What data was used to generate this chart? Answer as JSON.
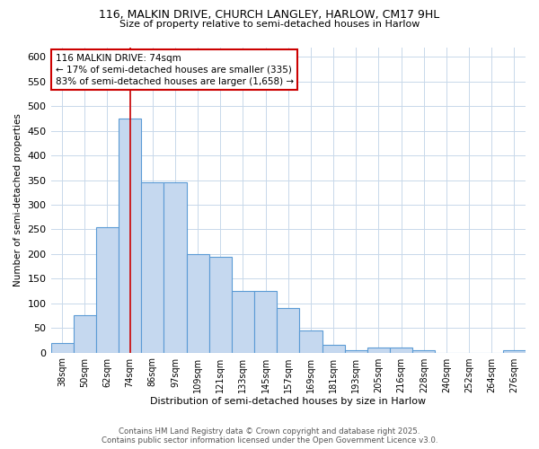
{
  "title_line1": "116, MALKIN DRIVE, CHURCH LANGLEY, HARLOW, CM17 9HL",
  "title_line2": "Size of property relative to semi-detached houses in Harlow",
  "xlabel": "Distribution of semi-detached houses by size in Harlow",
  "ylabel": "Number of semi-detached properties",
  "categories": [
    "38sqm",
    "50sqm",
    "62sqm",
    "74sqm",
    "86sqm",
    "97sqm",
    "109sqm",
    "121sqm",
    "133sqm",
    "145sqm",
    "157sqm",
    "169sqm",
    "181sqm",
    "193sqm",
    "205sqm",
    "216sqm",
    "228sqm",
    "240sqm",
    "252sqm",
    "264sqm",
    "276sqm"
  ],
  "values": [
    20,
    75,
    255,
    475,
    345,
    345,
    200,
    195,
    125,
    125,
    90,
    45,
    15,
    5,
    10,
    10,
    5,
    0,
    0,
    0,
    5
  ],
  "bar_color": "#c5d8ef",
  "bar_edge_color": "#5b9bd5",
  "property_size_idx": 3,
  "vline_color": "#cc0000",
  "annotation_text": "116 MALKIN DRIVE: 74sqm\n← 17% of semi-detached houses are smaller (335)\n83% of semi-detached houses are larger (1,658) →",
  "annotation_box_edgecolor": "#cc0000",
  "footer_line1": "Contains HM Land Registry data © Crown copyright and database right 2025.",
  "footer_line2": "Contains public sector information licensed under the Open Government Licence v3.0.",
  "ylim": [
    0,
    620
  ],
  "yticks": [
    0,
    50,
    100,
    150,
    200,
    250,
    300,
    350,
    400,
    450,
    500,
    550,
    600
  ],
  "background_color": "#ffffff",
  "grid_color": "#c8d8ea"
}
